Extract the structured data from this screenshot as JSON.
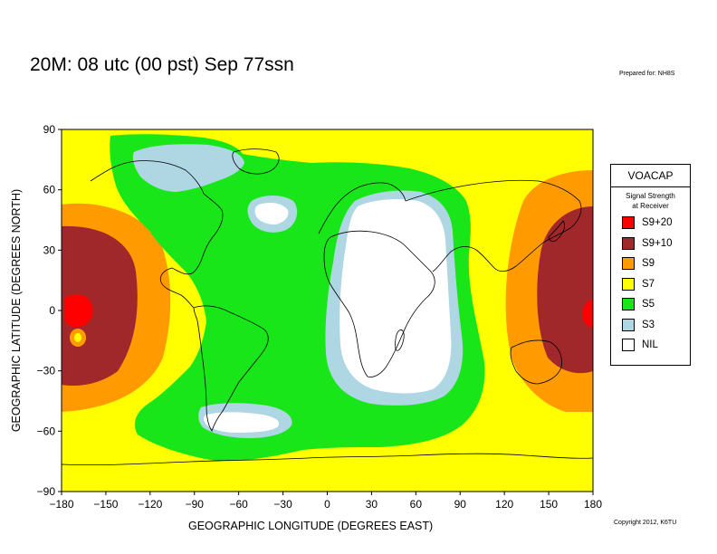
{
  "title": "20M:  08 utc (00 pst) Sep 77ssn",
  "prepared_for": "Prepared for: NH8S",
  "copyright": "Copyright 2012, K6TU",
  "axes": {
    "x_label": "GEOGRAPHIC LONGITUDE (DEGREES EAST)",
    "y_label": "GEOGRAPHIC LATITUDE (DEGREES NORTH)",
    "x_ticks": [
      "−180",
      "−150",
      "−120",
      "−90",
      "−60",
      "−30",
      "0",
      "30",
      "60",
      "90",
      "120",
      "150",
      "180"
    ],
    "y_ticks": [
      "90",
      "60",
      "30",
      "0",
      "−30",
      "−60",
      "−90"
    ],
    "x_range": [
      -180,
      180
    ],
    "y_range": [
      -90,
      90
    ]
  },
  "legend": {
    "title": "VOACAP",
    "subtitle_line1": "Signal Strength",
    "subtitle_line2": "at Receiver",
    "items": [
      {
        "label": "S9+20",
        "color": "#ff0000"
      },
      {
        "label": "S9+10",
        "color": "#a0282a"
      },
      {
        "label": "S9",
        "color": "#ff9a00"
      },
      {
        "label": "S7",
        "color": "#ffff00"
      },
      {
        "label": "S5",
        "color": "#19e619"
      },
      {
        "label": "S3",
        "color": "#aed6e3"
      },
      {
        "label": "NIL",
        "color": "#ffffff"
      }
    ]
  },
  "colors": {
    "s9_20": "#ff0000",
    "s9_10": "#a0282a",
    "s9": "#ff9a00",
    "s7": "#ffff00",
    "s5": "#19e619",
    "s3": "#aed6e3",
    "nil": "#ffffff"
  }
}
